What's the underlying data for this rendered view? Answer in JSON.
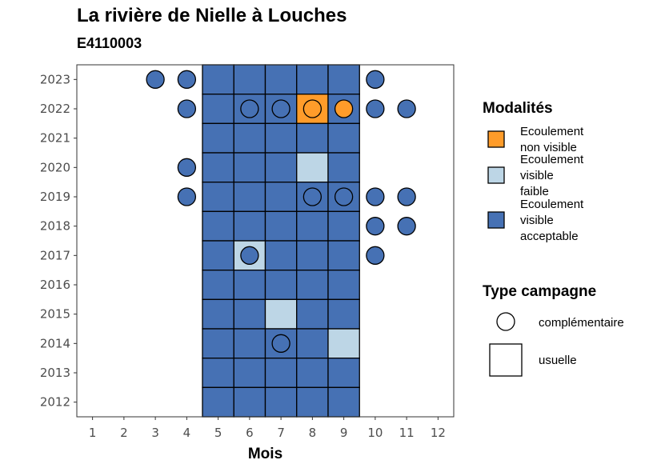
{
  "title": "La rivière de Nielle à Louches",
  "subtitle": "E4110003",
  "chart_data": {
    "type": "heatmap",
    "xlabel": "Mois",
    "ylabel": "",
    "x_ticks": [
      "1",
      "2",
      "3",
      "4",
      "5",
      "6",
      "7",
      "8",
      "9",
      "10",
      "11",
      "12"
    ],
    "y_ticks": [
      "2012",
      "2013",
      "2014",
      "2015",
      "2016",
      "2017",
      "2018",
      "2019",
      "2020",
      "2021",
      "2022",
      "2023"
    ],
    "xlim": [
      0.5,
      12.5
    ],
    "ylim": [
      2011.5,
      2023.5
    ],
    "colors": {
      "Ecoulement non visible": "#FF9C2A",
      "Ecoulement visible faible": "#BDD6E6",
      "Ecoulement visible acceptable": "#4671B4"
    },
    "modalites": [
      {
        "key": "Ecoulement non visible",
        "lines": [
          "Ecoulement",
          "non visible"
        ]
      },
      {
        "key": "Ecoulement visible faible",
        "lines": [
          "Ecoulement",
          "visible",
          "faible"
        ]
      },
      {
        "key": "Ecoulement visible acceptable",
        "lines": [
          "Ecoulement",
          "visible",
          "acceptable"
        ]
      }
    ],
    "type_campagne": [
      "complémentaire",
      "usuelle"
    ],
    "legend_title_modalites": "Modalités",
    "legend_title_type": "Type campagne",
    "points": [
      {
        "year": 2023,
        "month": 3,
        "campagne": "complémentaire",
        "modalite": "Ecoulement visible acceptable"
      },
      {
        "year": 2023,
        "month": 4,
        "campagne": "complémentaire",
        "modalite": "Ecoulement visible acceptable"
      },
      {
        "year": 2023,
        "month": 5,
        "campagne": "usuelle",
        "modalite": "Ecoulement visible acceptable"
      },
      {
        "year": 2023,
        "month": 6,
        "campagne": "usuelle",
        "modalite": "Ecoulement visible acceptable"
      },
      {
        "year": 2023,
        "month": 7,
        "campagne": "usuelle",
        "modalite": "Ecoulement visible acceptable"
      },
      {
        "year": 2023,
        "month": 8,
        "campagne": "usuelle",
        "modalite": "Ecoulement visible acceptable"
      },
      {
        "year": 2023,
        "month": 9,
        "campagne": "usuelle",
        "modalite": "Ecoulement visible acceptable"
      },
      {
        "year": 2023,
        "month": 10,
        "campagne": "complémentaire",
        "modalite": "Ecoulement visible acceptable"
      },
      {
        "year": 2022,
        "month": 4,
        "campagne": "complémentaire",
        "modalite": "Ecoulement visible acceptable"
      },
      {
        "year": 2022,
        "month": 5,
        "campagne": "usuelle",
        "modalite": "Ecoulement visible acceptable"
      },
      {
        "year": 2022,
        "month": 6,
        "campagne": "usuelle",
        "modalite": "Ecoulement visible acceptable"
      },
      {
        "year": 2022,
        "month": 6,
        "campagne": "complémentaire",
        "modalite": "Ecoulement visible acceptable"
      },
      {
        "year": 2022,
        "month": 7,
        "campagne": "usuelle",
        "modalite": "Ecoulement visible acceptable"
      },
      {
        "year": 2022,
        "month": 7,
        "campagne": "complémentaire",
        "modalite": "Ecoulement visible acceptable"
      },
      {
        "year": 2022,
        "month": 8,
        "campagne": "usuelle",
        "modalite": "Ecoulement non visible"
      },
      {
        "year": 2022,
        "month": 8,
        "campagne": "complémentaire",
        "modalite": "Ecoulement non visible"
      },
      {
        "year": 2022,
        "month": 9,
        "campagne": "usuelle",
        "modalite": "Ecoulement visible acceptable"
      },
      {
        "year": 2022,
        "month": 9,
        "campagne": "complémentaire",
        "modalite": "Ecoulement non visible"
      },
      {
        "year": 2022,
        "month": 10,
        "campagne": "complémentaire",
        "modalite": "Ecoulement visible acceptable"
      },
      {
        "year": 2022,
        "month": 11,
        "campagne": "complémentaire",
        "modalite": "Ecoulement visible acceptable"
      },
      {
        "year": 2021,
        "month": 5,
        "campagne": "usuelle",
        "modalite": "Ecoulement visible acceptable"
      },
      {
        "year": 2021,
        "month": 6,
        "campagne": "usuelle",
        "modalite": "Ecoulement visible acceptable"
      },
      {
        "year": 2021,
        "month": 7,
        "campagne": "usuelle",
        "modalite": "Ecoulement visible acceptable"
      },
      {
        "year": 2021,
        "month": 8,
        "campagne": "usuelle",
        "modalite": "Ecoulement visible acceptable"
      },
      {
        "year": 2021,
        "month": 9,
        "campagne": "usuelle",
        "modalite": "Ecoulement visible acceptable"
      },
      {
        "year": 2020,
        "month": 4,
        "campagne": "complémentaire",
        "modalite": "Ecoulement visible acceptable"
      },
      {
        "year": 2020,
        "month": 5,
        "campagne": "usuelle",
        "modalite": "Ecoulement visible acceptable"
      },
      {
        "year": 2020,
        "month": 6,
        "campagne": "usuelle",
        "modalite": "Ecoulement visible acceptable"
      },
      {
        "year": 2020,
        "month": 7,
        "campagne": "usuelle",
        "modalite": "Ecoulement visible acceptable"
      },
      {
        "year": 2020,
        "month": 8,
        "campagne": "usuelle",
        "modalite": "Ecoulement visible faible"
      },
      {
        "year": 2020,
        "month": 9,
        "campagne": "usuelle",
        "modalite": "Ecoulement visible acceptable"
      },
      {
        "year": 2019,
        "month": 4,
        "campagne": "complémentaire",
        "modalite": "Ecoulement visible acceptable"
      },
      {
        "year": 2019,
        "month": 5,
        "campagne": "usuelle",
        "modalite": "Ecoulement visible acceptable"
      },
      {
        "year": 2019,
        "month": 6,
        "campagne": "usuelle",
        "modalite": "Ecoulement visible acceptable"
      },
      {
        "year": 2019,
        "month": 7,
        "campagne": "usuelle",
        "modalite": "Ecoulement visible acceptable"
      },
      {
        "year": 2019,
        "month": 8,
        "campagne": "usuelle",
        "modalite": "Ecoulement visible acceptable"
      },
      {
        "year": 2019,
        "month": 8,
        "campagne": "complémentaire",
        "modalite": "Ecoulement visible acceptable"
      },
      {
        "year": 2019,
        "month": 9,
        "campagne": "usuelle",
        "modalite": "Ecoulement visible acceptable"
      },
      {
        "year": 2019,
        "month": 9,
        "campagne": "complémentaire",
        "modalite": "Ecoulement visible acceptable"
      },
      {
        "year": 2019,
        "month": 10,
        "campagne": "complémentaire",
        "modalite": "Ecoulement visible acceptable"
      },
      {
        "year": 2019,
        "month": 11,
        "campagne": "complémentaire",
        "modalite": "Ecoulement visible acceptable"
      },
      {
        "year": 2018,
        "month": 5,
        "campagne": "usuelle",
        "modalite": "Ecoulement visible acceptable"
      },
      {
        "year": 2018,
        "month": 6,
        "campagne": "usuelle",
        "modalite": "Ecoulement visible acceptable"
      },
      {
        "year": 2018,
        "month": 7,
        "campagne": "usuelle",
        "modalite": "Ecoulement visible acceptable"
      },
      {
        "year": 2018,
        "month": 8,
        "campagne": "usuelle",
        "modalite": "Ecoulement visible acceptable"
      },
      {
        "year": 2018,
        "month": 9,
        "campagne": "usuelle",
        "modalite": "Ecoulement visible acceptable"
      },
      {
        "year": 2018,
        "month": 10,
        "campagne": "complémentaire",
        "modalite": "Ecoulement visible acceptable"
      },
      {
        "year": 2018,
        "month": 11,
        "campagne": "complémentaire",
        "modalite": "Ecoulement visible acceptable"
      },
      {
        "year": 2017,
        "month": 5,
        "campagne": "usuelle",
        "modalite": "Ecoulement visible acceptable"
      },
      {
        "year": 2017,
        "month": 6,
        "campagne": "usuelle",
        "modalite": "Ecoulement visible faible"
      },
      {
        "year": 2017,
        "month": 6,
        "campagne": "complémentaire",
        "modalite": "Ecoulement visible acceptable"
      },
      {
        "year": 2017,
        "month": 7,
        "campagne": "usuelle",
        "modalite": "Ecoulement visible acceptable"
      },
      {
        "year": 2017,
        "month": 8,
        "campagne": "usuelle",
        "modalite": "Ecoulement visible acceptable"
      },
      {
        "year": 2017,
        "month": 9,
        "campagne": "usuelle",
        "modalite": "Ecoulement visible acceptable"
      },
      {
        "year": 2017,
        "month": 10,
        "campagne": "complémentaire",
        "modalite": "Ecoulement visible acceptable"
      },
      {
        "year": 2016,
        "month": 5,
        "campagne": "usuelle",
        "modalite": "Ecoulement visible acceptable"
      },
      {
        "year": 2016,
        "month": 6,
        "campagne": "usuelle",
        "modalite": "Ecoulement visible acceptable"
      },
      {
        "year": 2016,
        "month": 7,
        "campagne": "usuelle",
        "modalite": "Ecoulement visible acceptable"
      },
      {
        "year": 2016,
        "month": 8,
        "campagne": "usuelle",
        "modalite": "Ecoulement visible acceptable"
      },
      {
        "year": 2016,
        "month": 9,
        "campagne": "usuelle",
        "modalite": "Ecoulement visible acceptable"
      },
      {
        "year": 2015,
        "month": 5,
        "campagne": "usuelle",
        "modalite": "Ecoulement visible acceptable"
      },
      {
        "year": 2015,
        "month": 6,
        "campagne": "usuelle",
        "modalite": "Ecoulement visible acceptable"
      },
      {
        "year": 2015,
        "month": 7,
        "campagne": "usuelle",
        "modalite": "Ecoulement visible faible"
      },
      {
        "year": 2015,
        "month": 8,
        "campagne": "usuelle",
        "modalite": "Ecoulement visible acceptable"
      },
      {
        "year": 2015,
        "month": 9,
        "campagne": "usuelle",
        "modalite": "Ecoulement visible acceptable"
      },
      {
        "year": 2014,
        "month": 5,
        "campagne": "usuelle",
        "modalite": "Ecoulement visible acceptable"
      },
      {
        "year": 2014,
        "month": 6,
        "campagne": "usuelle",
        "modalite": "Ecoulement visible acceptable"
      },
      {
        "year": 2014,
        "month": 7,
        "campagne": "usuelle",
        "modalite": "Ecoulement visible acceptable"
      },
      {
        "year": 2014,
        "month": 7,
        "campagne": "complémentaire",
        "modalite": "Ecoulement visible acceptable"
      },
      {
        "year": 2014,
        "month": 8,
        "campagne": "usuelle",
        "modalite": "Ecoulement visible acceptable"
      },
      {
        "year": 2014,
        "month": 9,
        "campagne": "usuelle",
        "modalite": "Ecoulement visible faible"
      },
      {
        "year": 2013,
        "month": 5,
        "campagne": "usuelle",
        "modalite": "Ecoulement visible acceptable"
      },
      {
        "year": 2013,
        "month": 6,
        "campagne": "usuelle",
        "modalite": "Ecoulement visible acceptable"
      },
      {
        "year": 2013,
        "month": 7,
        "campagne": "usuelle",
        "modalite": "Ecoulement visible acceptable"
      },
      {
        "year": 2013,
        "month": 8,
        "campagne": "usuelle",
        "modalite": "Ecoulement visible acceptable"
      },
      {
        "year": 2013,
        "month": 9,
        "campagne": "usuelle",
        "modalite": "Ecoulement visible acceptable"
      },
      {
        "year": 2012,
        "month": 5,
        "campagne": "usuelle",
        "modalite": "Ecoulement visible acceptable"
      },
      {
        "year": 2012,
        "month": 6,
        "campagne": "usuelle",
        "modalite": "Ecoulement visible acceptable"
      },
      {
        "year": 2012,
        "month": 7,
        "campagne": "usuelle",
        "modalite": "Ecoulement visible acceptable"
      },
      {
        "year": 2012,
        "month": 8,
        "campagne": "usuelle",
        "modalite": "Ecoulement visible acceptable"
      },
      {
        "year": 2012,
        "month": 9,
        "campagne": "usuelle",
        "modalite": "Ecoulement visible acceptable"
      }
    ]
  }
}
